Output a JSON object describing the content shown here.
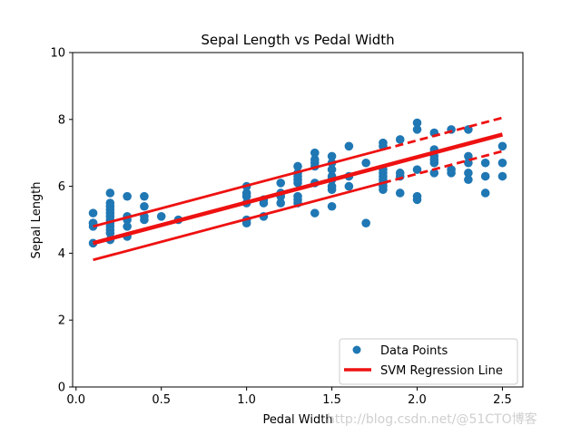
{
  "chart_data": {
    "type": "scatter",
    "title": "Sepal Length vs Pedal Width",
    "xlabel": "Pedal Width",
    "ylabel": "Sepal Length",
    "xlim": [
      -0.02,
      2.62
    ],
    "ylim": [
      0,
      10
    ],
    "xticks": [
      0.0,
      0.5,
      1.0,
      1.5,
      2.0,
      2.5
    ],
    "xtick_labels": [
      "0.0",
      "0.5",
      "1.0",
      "1.5",
      "2.0",
      "2.5"
    ],
    "yticks": [
      0,
      2,
      4,
      6,
      8,
      10
    ],
    "ytick_labels": [
      "0",
      "2",
      "4",
      "6",
      "8",
      "10"
    ],
    "grid": false,
    "legend_position": "lower-right",
    "colors": {
      "points": "#1f77b4",
      "regression": "#ee1111"
    },
    "series": [
      {
        "name": "Data Points",
        "kind": "scatter",
        "points": [
          [
            0.1,
            4.3
          ],
          [
            0.1,
            4.8
          ],
          [
            0.1,
            4.9
          ],
          [
            0.1,
            5.2
          ],
          [
            0.1,
            4.9
          ],
          [
            0.2,
            4.4
          ],
          [
            0.2,
            4.6
          ],
          [
            0.2,
            4.7
          ],
          [
            0.2,
            4.8
          ],
          [
            0.2,
            4.9
          ],
          [
            0.2,
            5.0
          ],
          [
            0.2,
            5.1
          ],
          [
            0.2,
            5.2
          ],
          [
            0.2,
            5.3
          ],
          [
            0.2,
            5.4
          ],
          [
            0.2,
            5.5
          ],
          [
            0.2,
            5.8
          ],
          [
            0.3,
            4.5
          ],
          [
            0.3,
            4.8
          ],
          [
            0.3,
            5.0
          ],
          [
            0.3,
            5.1
          ],
          [
            0.3,
            5.7
          ],
          [
            0.4,
            5.0
          ],
          [
            0.4,
            5.1
          ],
          [
            0.4,
            5.4
          ],
          [
            0.4,
            5.7
          ],
          [
            0.5,
            5.1
          ],
          [
            0.6,
            5.0
          ],
          [
            1.0,
            4.9
          ],
          [
            1.0,
            5.0
          ],
          [
            1.0,
            5.5
          ],
          [
            1.0,
            5.7
          ],
          [
            1.0,
            5.8
          ],
          [
            1.0,
            6.0
          ],
          [
            1.1,
            5.1
          ],
          [
            1.1,
            5.5
          ],
          [
            1.1,
            5.6
          ],
          [
            1.2,
            5.5
          ],
          [
            1.2,
            5.7
          ],
          [
            1.2,
            5.8
          ],
          [
            1.2,
            6.1
          ],
          [
            1.3,
            5.5
          ],
          [
            1.3,
            5.6
          ],
          [
            1.3,
            5.7
          ],
          [
            1.3,
            6.1
          ],
          [
            1.3,
            6.2
          ],
          [
            1.3,
            6.3
          ],
          [
            1.3,
            6.4
          ],
          [
            1.3,
            6.6
          ],
          [
            1.4,
            5.2
          ],
          [
            1.4,
            6.1
          ],
          [
            1.4,
            6.6
          ],
          [
            1.4,
            6.7
          ],
          [
            1.4,
            6.8
          ],
          [
            1.4,
            7.0
          ],
          [
            1.5,
            5.4
          ],
          [
            1.5,
            5.9
          ],
          [
            1.5,
            6.0
          ],
          [
            1.5,
            6.2
          ],
          [
            1.5,
            6.3
          ],
          [
            1.5,
            6.5
          ],
          [
            1.5,
            6.7
          ],
          [
            1.5,
            6.9
          ],
          [
            1.6,
            6.0
          ],
          [
            1.6,
            6.3
          ],
          [
            1.6,
            7.2
          ],
          [
            1.7,
            4.9
          ],
          [
            1.7,
            6.7
          ],
          [
            1.8,
            5.9
          ],
          [
            1.8,
            6.0
          ],
          [
            1.8,
            6.1
          ],
          [
            1.8,
            6.2
          ],
          [
            1.8,
            6.3
          ],
          [
            1.8,
            6.4
          ],
          [
            1.8,
            6.5
          ],
          [
            1.8,
            7.2
          ],
          [
            1.8,
            7.3
          ],
          [
            1.9,
            5.8
          ],
          [
            1.9,
            6.3
          ],
          [
            1.9,
            6.4
          ],
          [
            1.9,
            7.4
          ],
          [
            2.0,
            5.6
          ],
          [
            2.0,
            5.7
          ],
          [
            2.0,
            6.5
          ],
          [
            2.0,
            7.7
          ],
          [
            2.0,
            7.9
          ],
          [
            2.1,
            6.4
          ],
          [
            2.1,
            6.7
          ],
          [
            2.1,
            6.8
          ],
          [
            2.1,
            6.9
          ],
          [
            2.1,
            7.1
          ],
          [
            2.1,
            7.6
          ],
          [
            2.2,
            6.4
          ],
          [
            2.2,
            6.5
          ],
          [
            2.2,
            7.7
          ],
          [
            2.3,
            6.2
          ],
          [
            2.3,
            6.4
          ],
          [
            2.3,
            6.7
          ],
          [
            2.3,
            6.9
          ],
          [
            2.3,
            7.7
          ],
          [
            2.4,
            5.8
          ],
          [
            2.4,
            6.3
          ],
          [
            2.4,
            6.7
          ],
          [
            2.5,
            6.3
          ],
          [
            2.5,
            6.7
          ],
          [
            2.5,
            7.2
          ]
        ]
      },
      {
        "name": "SVM Regression Line",
        "kind": "line",
        "points": [
          [
            0.1,
            4.3
          ],
          [
            2.5,
            7.55
          ]
        ]
      },
      {
        "kind": "margin-upper",
        "points": [
          [
            0.1,
            4.8
          ],
          [
            2.5,
            8.05
          ]
        ],
        "solid_until_x": 1.8
      },
      {
        "kind": "margin-lower",
        "points": [
          [
            0.1,
            3.8
          ],
          [
            2.5,
            7.05
          ]
        ],
        "solid_until_x": 1.8
      }
    ]
  },
  "watermark": "http://blog.csdn.net/@51CTO博客"
}
